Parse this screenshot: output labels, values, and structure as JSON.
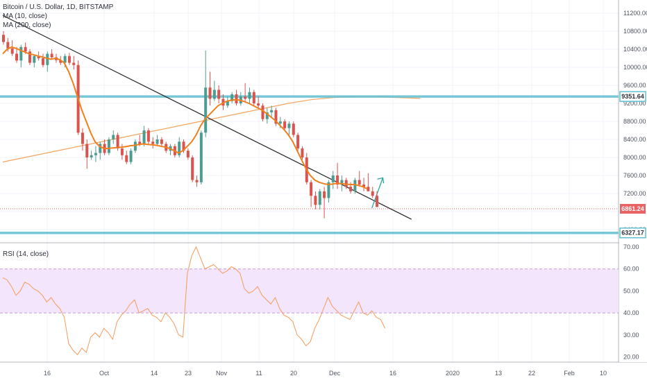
{
  "header": {
    "symbol_title": "Bitcoin / U.S. Dollar, 1D, BITSTAMP",
    "ma10_label": "MA (10, close)",
    "ma200_label": "MA (200, close)",
    "rsi_label": "RSI (14, close)"
  },
  "colors": {
    "up": "#4c9d8f",
    "down": "#d9534f",
    "ma10": "#f07f1c",
    "ma200": "#f4a460",
    "hline": "#5fbfd2",
    "trend": "#222222",
    "rsi_line": "#f59a5a",
    "rsi_band": "#f3e5fb",
    "current_price": "#e86363"
  },
  "chart_data": [
    {
      "type": "candlestick",
      "title": "Bitcoin / U.S. Dollar, 1D, BITSTAMP",
      "x_tick_labels": [
        "16",
        "Oct",
        "14",
        "23",
        "Nov",
        "11",
        "20",
        "Dec",
        "16",
        "2020",
        "13",
        "22",
        "Feb",
        "10"
      ],
      "y_tick_labels": [
        "11200.00",
        "10800.00",
        "10400.00",
        "10000.00",
        "9600.00",
        "9200.00",
        "8800.00",
        "8400.00",
        "8000.00",
        "7600.00",
        "7200.00",
        "6800.00",
        "6400.00"
      ],
      "ylim": [
        6200,
        11300
      ],
      "price_badges": [
        {
          "label": "9351.64",
          "value": 9351.64,
          "style": "hline"
        },
        {
          "label": "6861.24",
          "value": 6861.24,
          "style": "current"
        },
        {
          "label": "6327.17",
          "value": 6327.17,
          "style": "hline"
        }
      ],
      "horizontal_levels": [
        9351.64,
        6327.17
      ],
      "trendline": {
        "start": {
          "day": 0,
          "price": 11150
        },
        "end": {
          "day": 93,
          "price": 6630
        }
      },
      "projection_arrow": {
        "start": {
          "day": 84,
          "price": 6880
        },
        "end": {
          "day": 86.5,
          "price": 7550
        }
      },
      "ohlc": [
        [
          10720,
          10800,
          10500,
          10560
        ],
        [
          10560,
          10650,
          10350,
          10420
        ],
        [
          10420,
          10600,
          10250,
          10300
        ],
        [
          10300,
          10450,
          10100,
          10150
        ],
        [
          10150,
          10500,
          10000,
          10450
        ],
        [
          10450,
          10550,
          10300,
          10350
        ],
        [
          10350,
          10400,
          10050,
          10100
        ],
        [
          10100,
          10280,
          10000,
          10250
        ],
        [
          10250,
          10350,
          10150,
          10200
        ],
        [
          10200,
          10300,
          10000,
          10050
        ],
        [
          10050,
          10350,
          9900,
          10300
        ],
        [
          10300,
          10400,
          10180,
          10220
        ],
        [
          10220,
          10300,
          10100,
          10160
        ],
        [
          10160,
          10250,
          10050,
          10100
        ],
        [
          10100,
          10300,
          10000,
          10250
        ],
        [
          10250,
          10320,
          10050,
          10100
        ],
        [
          10100,
          10250,
          9950,
          10050
        ],
        [
          10050,
          10150,
          8500,
          8550
        ],
        [
          8550,
          8650,
          8150,
          8300
        ],
        [
          8300,
          8400,
          7750,
          8000
        ],
        [
          8000,
          8150,
          7950,
          8050
        ],
        [
          8050,
          8250,
          7900,
          8100
        ],
        [
          8100,
          8350,
          7950,
          8300
        ],
        [
          8300,
          8400,
          8050,
          8100
        ],
        [
          8100,
          8450,
          8050,
          8400
        ],
        [
          8400,
          8600,
          8300,
          8500
        ],
        [
          8500,
          8550,
          8150,
          8200
        ],
        [
          8200,
          8300,
          7950,
          8050
        ],
        [
          8050,
          8150,
          7850,
          7900
        ],
        [
          7900,
          8200,
          7850,
          8150
        ],
        [
          8150,
          8400,
          8100,
          8350
        ],
        [
          8350,
          8500,
          8250,
          8300
        ],
        [
          8300,
          8700,
          8250,
          8600
        ],
        [
          8600,
          8650,
          8300,
          8350
        ],
        [
          8350,
          8450,
          8200,
          8300
        ],
        [
          8300,
          8500,
          8250,
          8400
        ],
        [
          8400,
          8450,
          8250,
          8300
        ],
        [
          8300,
          8350,
          8100,
          8150
        ],
        [
          8150,
          8300,
          8050,
          8250
        ],
        [
          8250,
          8300,
          8000,
          8050
        ],
        [
          8050,
          8450,
          8000,
          8350
        ],
        [
          8350,
          8400,
          8100,
          8150
        ],
        [
          8150,
          8200,
          7950,
          8000
        ],
        [
          8000,
          8050,
          7450,
          7500
        ],
        [
          7500,
          7600,
          7350,
          7450
        ],
        [
          7450,
          8600,
          7400,
          8550
        ],
        [
          8550,
          10370,
          8450,
          9550
        ],
        [
          9550,
          9900,
          9150,
          9300
        ],
        [
          9300,
          9700,
          9250,
          9500
        ],
        [
          9500,
          9600,
          9200,
          9300
        ],
        [
          9300,
          9400,
          9050,
          9150
        ],
        [
          9150,
          9350,
          9100,
          9250
        ],
        [
          9250,
          9450,
          9200,
          9400
        ],
        [
          9400,
          9500,
          9150,
          9200
        ],
        [
          9200,
          9450,
          9150,
          9350
        ],
        [
          9350,
          9650,
          9250,
          9300
        ],
        [
          9300,
          9550,
          9200,
          9450
        ],
        [
          9450,
          9500,
          9150,
          9200
        ],
        [
          9200,
          9350,
          9100,
          9150
        ],
        [
          9150,
          9200,
          8800,
          8850
        ],
        [
          8850,
          9100,
          8750,
          9000
        ],
        [
          9000,
          9150,
          8900,
          9050
        ],
        [
          9050,
          9100,
          8700,
          8750
        ],
        [
          8750,
          8900,
          8650,
          8800
        ],
        [
          8800,
          8850,
          8600,
          8650
        ],
        [
          8650,
          8800,
          8500,
          8750
        ],
        [
          8750,
          8800,
          8450,
          8500
        ],
        [
          8500,
          8550,
          8150,
          8200
        ],
        [
          8200,
          8250,
          7950,
          8000
        ],
        [
          8000,
          8100,
          7400,
          7450
        ],
        [
          7450,
          7500,
          6900,
          7150
        ],
        [
          7150,
          7250,
          6850,
          6950
        ],
        [
          6950,
          7300,
          6850,
          7250
        ],
        [
          7250,
          7350,
          6650,
          7100
        ],
        [
          7100,
          7500,
          7000,
          7450
        ],
        [
          7450,
          7700,
          7300,
          7600
        ],
        [
          7600,
          7880,
          7300,
          7400
        ],
        [
          7400,
          7600,
          7250,
          7500
        ],
        [
          7500,
          7550,
          7300,
          7350
        ],
        [
          7350,
          7450,
          7200,
          7250
        ],
        [
          7250,
          7550,
          7200,
          7500
        ],
        [
          7500,
          7700,
          7350,
          7400
        ],
        [
          7400,
          7550,
          7250,
          7350
        ],
        [
          7350,
          7650,
          7300,
          7250
        ],
        [
          7250,
          7350,
          7100,
          7150
        ],
        [
          7150,
          7250,
          6950,
          6900
        ]
      ],
      "ma10": [
        10300,
        10400,
        10450,
        10420,
        10380,
        10340,
        10300,
        10280,
        10250,
        10230,
        10200,
        10180,
        10200,
        10170,
        10100,
        9900,
        9650,
        9350,
        9050,
        8800,
        8550,
        8350,
        8250,
        8200,
        8200,
        8210,
        8220,
        8230,
        8240,
        8260,
        8270,
        8290,
        8300,
        8290,
        8280,
        8270,
        8250,
        8230,
        8200,
        8150,
        8100,
        8150,
        8250,
        8350,
        8500,
        8700,
        8850,
        8950,
        9050,
        9150,
        9200,
        9250,
        9270,
        9280,
        9270,
        9240,
        9200,
        9150,
        9100,
        9050,
        8980,
        8900,
        8820,
        8720,
        8620,
        8500,
        8350,
        8150,
        7950,
        7750,
        7600,
        7500,
        7450,
        7420,
        7400,
        7410,
        7430,
        7420,
        7410,
        7400,
        7400,
        7380,
        7350,
        7300
      ],
      "ma200": [
        7900,
        8000,
        8100,
        8200,
        8300,
        8400,
        8500,
        8600,
        8700,
        8800,
        8900,
        9000,
        9100,
        9200,
        9280,
        9330,
        9350,
        9350,
        9330,
        9310
      ],
      "ma200_day_start": 0,
      "ma200_day_step": 5
    },
    {
      "type": "line",
      "title": "RSI (14, close)",
      "y_tick_labels": [
        "70.00",
        "60.00",
        "50.00",
        "40.00",
        "30.00",
        "20.00"
      ],
      "ylim": [
        17,
        72
      ],
      "band": [
        40,
        60
      ],
      "values": [
        56,
        55,
        52,
        48,
        50,
        54,
        53,
        51,
        50,
        48,
        45,
        47,
        44,
        42,
        38,
        26,
        23,
        21,
        24,
        22,
        29,
        31,
        29,
        33,
        31,
        28,
        36,
        39,
        41,
        44,
        46,
        40,
        41,
        42,
        39,
        38,
        36,
        40,
        38,
        35,
        30,
        29,
        58,
        66,
        70,
        65,
        60,
        61,
        62,
        60,
        58,
        59,
        61,
        60,
        58,
        51,
        49,
        50,
        52,
        48,
        46,
        44,
        47,
        42,
        39,
        38,
        36,
        30,
        28,
        25,
        27,
        33,
        37,
        42,
        47,
        43,
        41,
        39,
        38,
        37,
        41,
        45,
        40,
        39,
        41,
        38,
        37,
        33
      ]
    }
  ]
}
